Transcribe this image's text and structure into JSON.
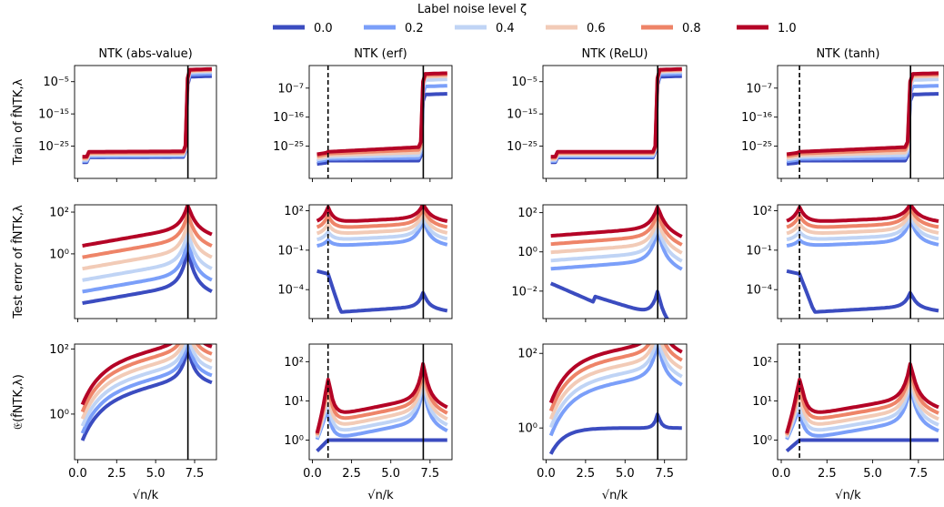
{
  "legend": {
    "title": "Label noise level ζ",
    "placement": "top-center",
    "entries": [
      {
        "label": "0.0",
        "color": "#3b4cc0"
      },
      {
        "label": "0.2",
        "color": "#7b9ff9"
      },
      {
        "label": "0.4",
        "color": "#c0d4f5"
      },
      {
        "label": "0.6",
        "color": "#f2cbb7"
      },
      {
        "label": "0.8",
        "color": "#ee8468"
      },
      {
        "label": "1.0",
        "color": "#b40426"
      }
    ]
  },
  "row_labels": [
    "Train of f̂NTK,λ",
    "Test error of f̂NTK,λ",
    "𝔈(f̂NTK,λ)"
  ],
  "xlabel": "√n/k",
  "x_ticks": [
    "0.0",
    "2.5",
    "5.0",
    "7.5"
  ],
  "chart_data": [
    {
      "type": "line",
      "row": 0,
      "col": 0,
      "title": "NTK (abs-value)",
      "xlim": [
        -0.2,
        8.9
      ],
      "y_scale": "log",
      "ylim": [
        -35,
        0
      ],
      "y_ticks": [
        {
          "label": "10⁻⁵",
          "v": -5
        },
        {
          "label": "10⁻¹⁵",
          "v": -15
        },
        {
          "label": "10⁻²⁵",
          "v": -25
        }
      ],
      "vlines": [
        {
          "x": 7.07,
          "style": "solid"
        }
      ]
    },
    {
      "type": "line",
      "row": 0,
      "col": 1,
      "title": "NTK (erf)",
      "xlim": [
        -0.2,
        8.9
      ],
      "y_scale": "log",
      "ylim": [
        -35,
        0
      ],
      "y_ticks": [
        {
          "label": "10⁻⁷",
          "v": -7
        },
        {
          "label": "10⁻¹⁶",
          "v": -16
        },
        {
          "label": "10⁻²⁵",
          "v": -25
        }
      ],
      "vlines": [
        {
          "x": 1.0,
          "style": "dashed"
        },
        {
          "x": 7.07,
          "style": "solid"
        }
      ]
    },
    {
      "type": "line",
      "row": 0,
      "col": 2,
      "title": "NTK (ReLU)",
      "xlim": [
        -0.2,
        8.9
      ],
      "y_scale": "log",
      "ylim": [
        -35,
        0
      ],
      "y_ticks": [
        {
          "label": "10⁻⁵",
          "v": -5
        },
        {
          "label": "10⁻¹⁵",
          "v": -15
        },
        {
          "label": "10⁻²⁵",
          "v": -25
        }
      ],
      "vlines": [
        {
          "x": 7.07,
          "style": "solid"
        }
      ]
    },
    {
      "type": "line",
      "row": 0,
      "col": 3,
      "title": "NTK (tanh)",
      "xlim": [
        -0.2,
        8.9
      ],
      "y_scale": "log",
      "ylim": [
        -35,
        0
      ],
      "y_ticks": [
        {
          "label": "10⁻⁷",
          "v": -7
        },
        {
          "label": "10⁻¹⁶",
          "v": -16
        },
        {
          "label": "10⁻²⁵",
          "v": -25
        }
      ],
      "vlines": [
        {
          "x": 1.0,
          "style": "dashed"
        },
        {
          "x": 7.07,
          "style": "solid"
        }
      ]
    },
    {
      "type": "line",
      "row": 1,
      "col": 0,
      "title": "",
      "xlim": [
        -0.2,
        8.9
      ],
      "y_scale": "log",
      "ylim": [
        -3.1,
        2.35
      ],
      "y_ticks": [
        {
          "label": "10²",
          "v": 2
        },
        {
          "label": "10⁰",
          "v": 0
        }
      ],
      "vlines": [
        {
          "x": 7.07,
          "style": "solid"
        }
      ]
    },
    {
      "type": "line",
      "row": 1,
      "col": 1,
      "title": "",
      "xlim": [
        -0.2,
        8.9
      ],
      "y_scale": "log",
      "ylim": [
        -6.2,
        2.45
      ],
      "y_ticks": [
        {
          "label": "10²",
          "v": 2
        },
        {
          "label": "10⁻¹",
          "v": -1
        },
        {
          "label": "10⁻⁴",
          "v": -4
        }
      ],
      "vlines": [
        {
          "x": 1.0,
          "style": "dashed"
        },
        {
          "x": 7.07,
          "style": "solid"
        }
      ]
    },
    {
      "type": "line",
      "row": 1,
      "col": 2,
      "title": "",
      "xlim": [
        -0.2,
        8.9
      ],
      "y_scale": "log",
      "ylim": [
        -3.4,
        2.4
      ],
      "y_ticks": [
        {
          "label": "10²",
          "v": 2
        },
        {
          "label": "10⁰",
          "v": 0
        },
        {
          "label": "10⁻²",
          "v": -2
        }
      ],
      "vlines": [
        {
          "x": 7.07,
          "style": "solid"
        }
      ]
    },
    {
      "type": "line",
      "row": 1,
      "col": 3,
      "title": "",
      "xlim": [
        -0.2,
        8.9
      ],
      "y_scale": "log",
      "ylim": [
        -6.2,
        2.45
      ],
      "y_ticks": [
        {
          "label": "10²",
          "v": 2
        },
        {
          "label": "10⁻¹",
          "v": -1
        },
        {
          "label": "10⁻⁴",
          "v": -4
        }
      ],
      "vlines": [
        {
          "x": 1.0,
          "style": "dashed"
        },
        {
          "x": 7.07,
          "style": "solid"
        }
      ]
    },
    {
      "type": "line",
      "row": 2,
      "col": 0,
      "title": "",
      "xlim": [
        -0.2,
        8.9
      ],
      "y_scale": "log",
      "ylim": [
        -1.4,
        2.15
      ],
      "y_ticks": [
        {
          "label": "10²",
          "v": 2
        },
        {
          "label": "10⁰",
          "v": 0
        }
      ],
      "vlines": [
        {
          "x": 7.07,
          "style": "solid"
        }
      ]
    },
    {
      "type": "line",
      "row": 2,
      "col": 1,
      "title": "",
      "xlim": [
        -0.2,
        8.9
      ],
      "y_scale": "log",
      "ylim": [
        -0.5,
        2.45
      ],
      "y_ticks": [
        {
          "label": "10²",
          "v": 2
        },
        {
          "label": "10¹",
          "v": 1
        },
        {
          "label": "10⁰",
          "v": 0
        }
      ],
      "vlines": [
        {
          "x": 1.0,
          "style": "dashed"
        },
        {
          "x": 7.07,
          "style": "solid"
        }
      ]
    },
    {
      "type": "line",
      "row": 2,
      "col": 2,
      "title": "",
      "xlim": [
        -0.2,
        8.9
      ],
      "y_scale": "log",
      "ylim": [
        -0.85,
        2.25
      ],
      "y_ticks": [
        {
          "label": "10²",
          "v": 2
        },
        {
          "label": "10⁰",
          "v": 0
        }
      ],
      "vlines": [
        {
          "x": 7.07,
          "style": "solid"
        }
      ]
    },
    {
      "type": "line",
      "row": 2,
      "col": 3,
      "title": "",
      "xlim": [
        -0.2,
        8.9
      ],
      "y_scale": "log",
      "ylim": [
        -0.5,
        2.45
      ],
      "y_ticks": [
        {
          "label": "10²",
          "v": 2
        },
        {
          "label": "10¹",
          "v": 1
        },
        {
          "label": "10⁰",
          "v": 0
        }
      ],
      "vlines": [
        {
          "x": 1.0,
          "style": "dashed"
        },
        {
          "x": 7.07,
          "style": "solid"
        }
      ]
    }
  ]
}
